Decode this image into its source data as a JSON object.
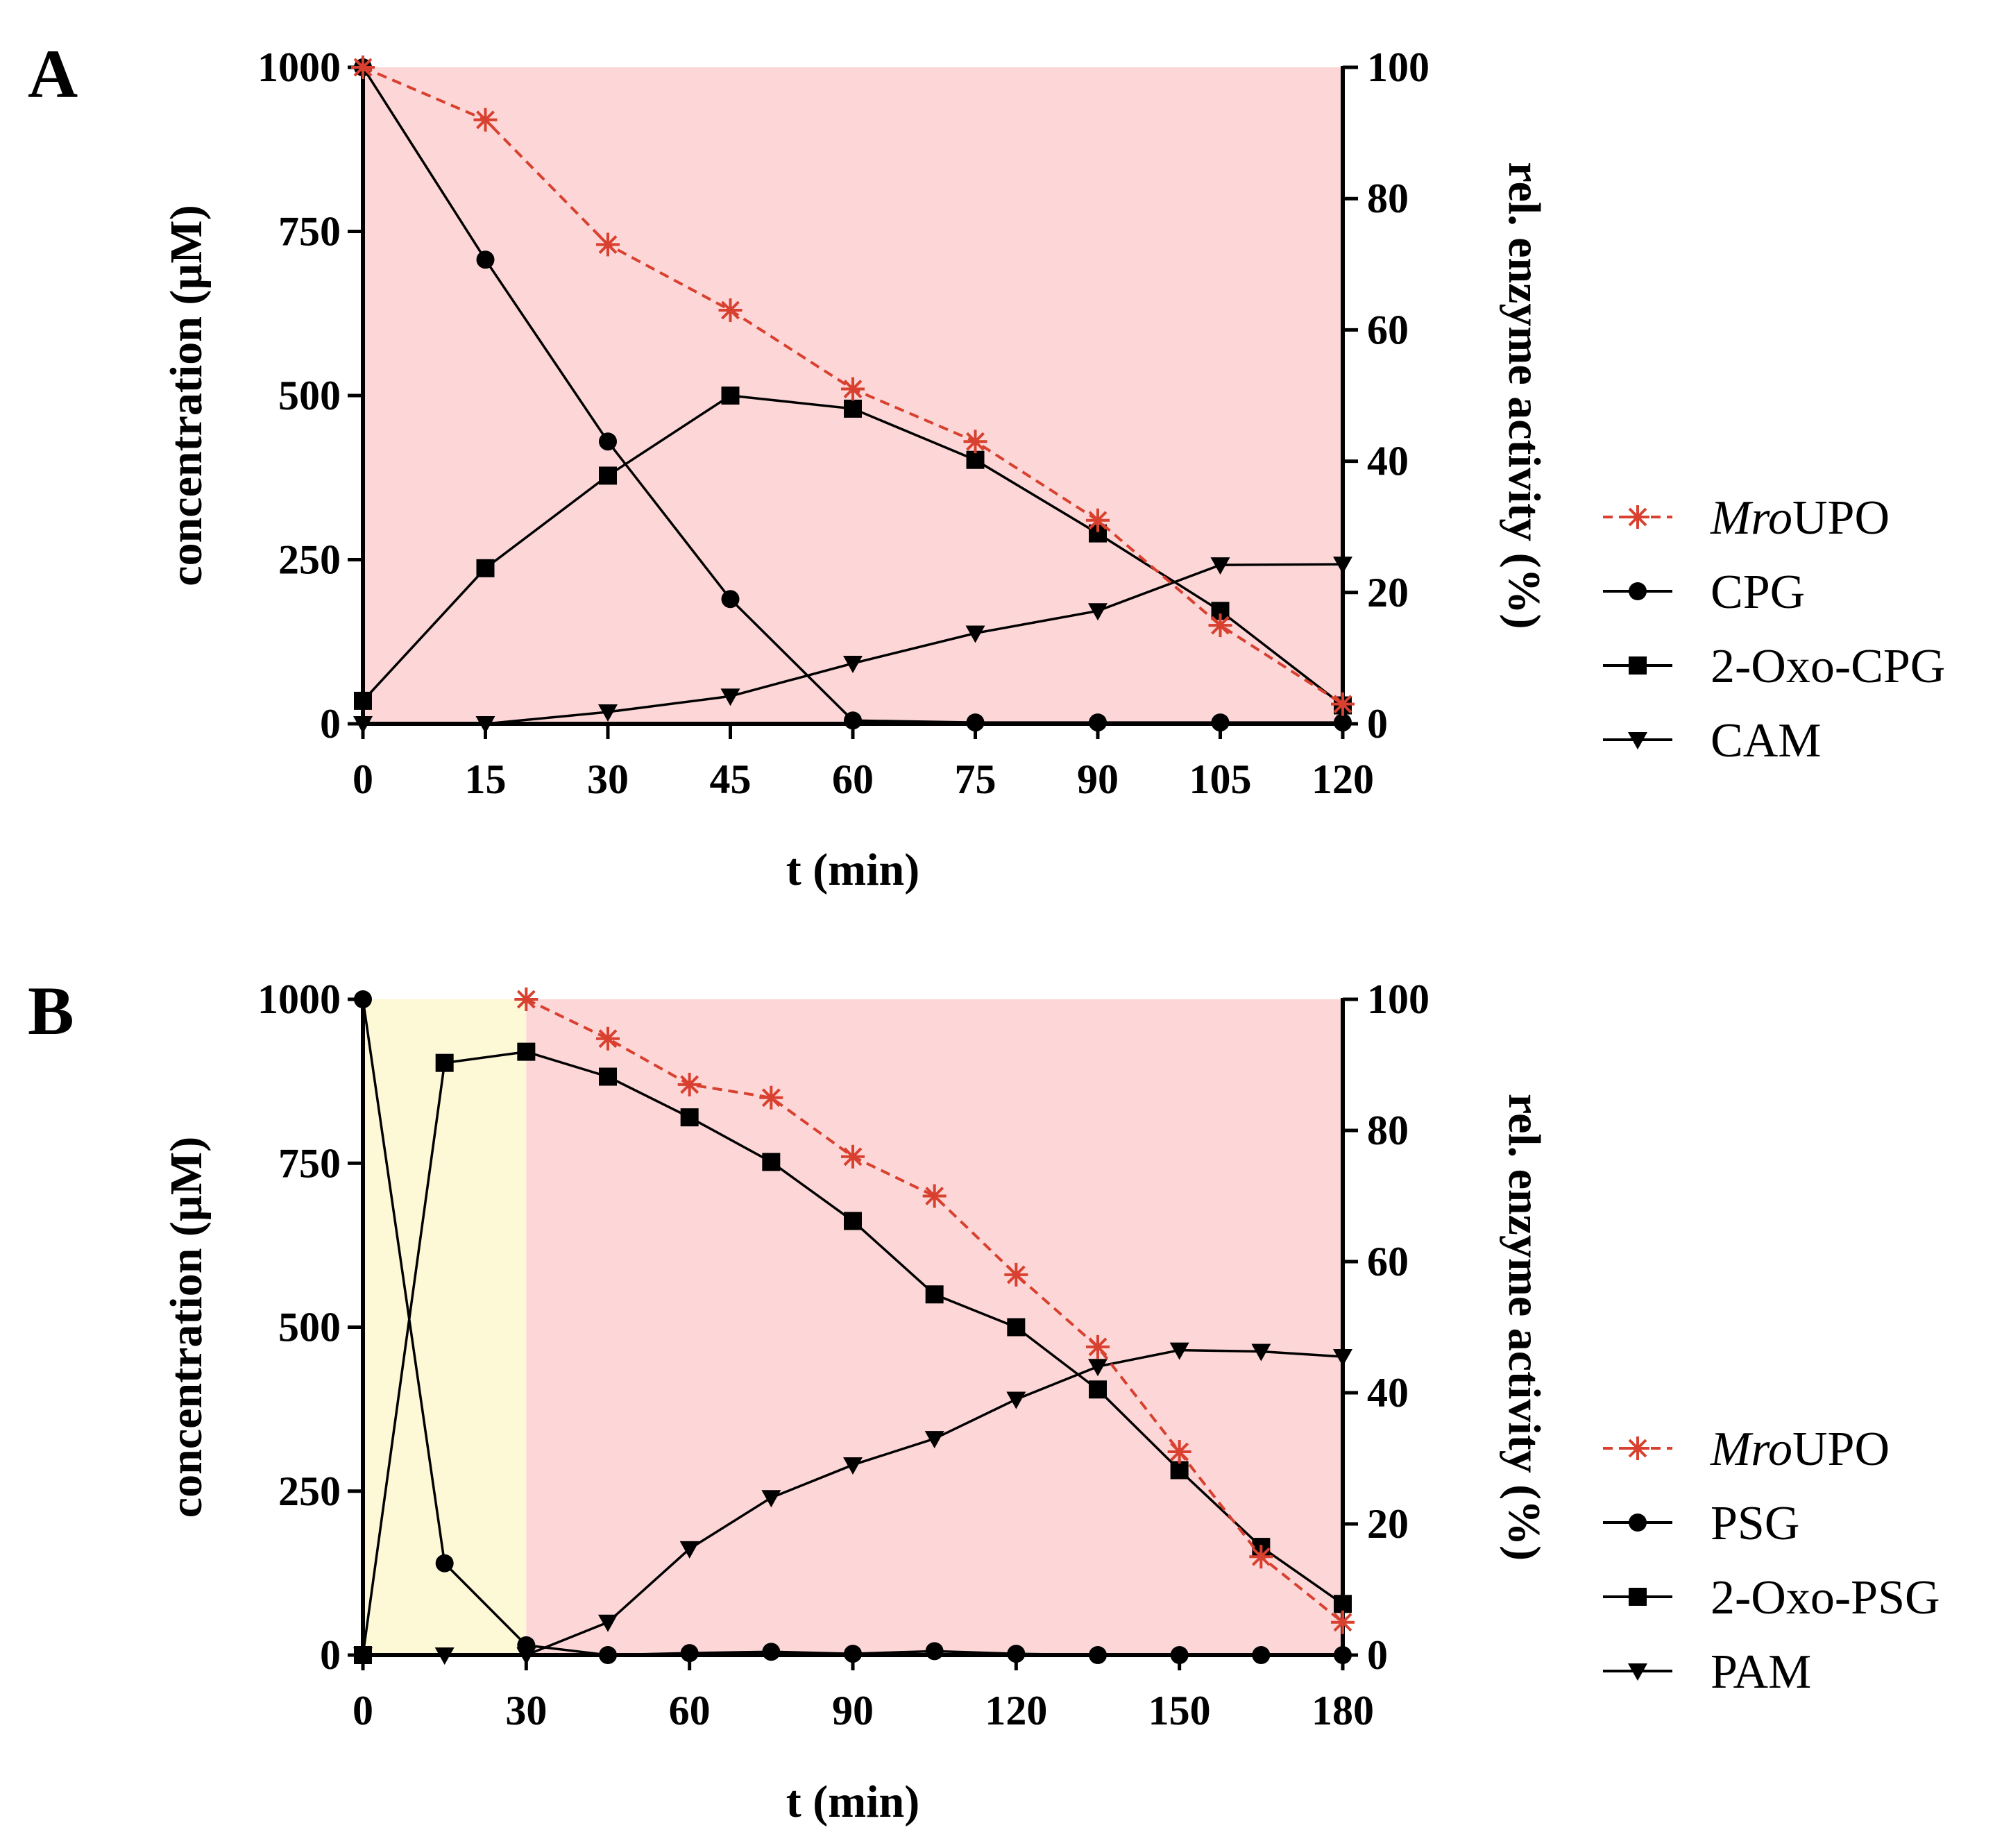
{
  "chart_data": [
    {
      "panel": "A",
      "type": "line",
      "xlabel": "t (min)",
      "ylabel": "concentration (µM)",
      "y2label": "rel. enzyme activity (%)",
      "xlim": [
        0,
        120
      ],
      "ylim": [
        0,
        1000
      ],
      "y2lim": [
        0,
        100
      ],
      "xticks": [
        0,
        15,
        30,
        45,
        60,
        75,
        90,
        105,
        120
      ],
      "yticks": [
        0,
        250,
        500,
        750,
        1000
      ],
      "y2ticks": [
        0,
        20,
        40,
        60,
        80,
        100
      ],
      "shading": [
        {
          "from": 0,
          "to": 120,
          "color": "#fdd7d7"
        }
      ],
      "series": [
        {
          "name": "MroUPO",
          "name_italic": "Mro",
          "name_rest": "UPO",
          "axis": "right",
          "marker": "asterisk",
          "color": "#d8402f",
          "dashed": true,
          "x": [
            0,
            15,
            30,
            45,
            60,
            75,
            90,
            105,
            120
          ],
          "values": [
            100,
            92,
            73,
            63,
            51,
            43,
            31,
            15,
            3
          ]
        },
        {
          "name": "CPG",
          "axis": "left",
          "marker": "circle",
          "color": "#000000",
          "dashed": false,
          "x": [
            0,
            15,
            30,
            45,
            60,
            75,
            90,
            105,
            120
          ],
          "values": [
            1000,
            707,
            430,
            190,
            5,
            2,
            2,
            2,
            2
          ]
        },
        {
          "name": "2-Oxo-CPG",
          "axis": "left",
          "marker": "square",
          "color": "#000000",
          "dashed": false,
          "x": [
            0,
            15,
            30,
            45,
            60,
            75,
            90,
            105,
            120
          ],
          "values": [
            35,
            237,
            378,
            500,
            480,
            402,
            290,
            172,
            28
          ]
        },
        {
          "name": "CAM",
          "axis": "left",
          "marker": "triangle-down",
          "color": "#000000",
          "dashed": false,
          "x": [
            0,
            15,
            30,
            45,
            60,
            75,
            90,
            105,
            120
          ],
          "values": [
            0,
            0,
            18,
            42,
            92,
            138,
            172,
            242,
            243
          ]
        }
      ]
    },
    {
      "panel": "B",
      "type": "line",
      "xlabel": "t (min)",
      "ylabel": "concentration (µM)",
      "y2label": "rel. enzyme activity (%)",
      "xlim": [
        0,
        180
      ],
      "ylim": [
        0,
        1000
      ],
      "y2lim": [
        0,
        100
      ],
      "xticks": [
        0,
        30,
        60,
        90,
        120,
        150,
        180
      ],
      "yticks": [
        0,
        250,
        500,
        750,
        1000
      ],
      "y2ticks": [
        0,
        20,
        40,
        60,
        80,
        100
      ],
      "shading": [
        {
          "from": 0,
          "to": 30,
          "color": "#fdf8d6"
        },
        {
          "from": 30,
          "to": 180,
          "color": "#fdd7d7"
        }
      ],
      "series": [
        {
          "name": "MroUPO",
          "name_italic": "Mro",
          "name_rest": "UPO",
          "axis": "right",
          "marker": "asterisk",
          "color": "#d8402f",
          "dashed": true,
          "x": [
            30,
            45,
            60,
            75,
            90,
            105,
            120,
            135,
            150,
            165,
            180
          ],
          "values": [
            100,
            94,
            87,
            85,
            76,
            70,
            58,
            47,
            31,
            15,
            5
          ]
        },
        {
          "name": "PSG",
          "axis": "left",
          "marker": "circle",
          "color": "#000000",
          "dashed": false,
          "x": [
            0,
            15,
            30,
            45,
            60,
            75,
            90,
            105,
            120,
            135,
            150,
            165,
            180
          ],
          "values": [
            1000,
            140,
            15,
            0,
            3,
            5,
            2,
            6,
            2,
            0,
            0,
            0,
            0
          ]
        },
        {
          "name": "2-Oxo-PSG",
          "axis": "left",
          "marker": "square",
          "color": "#000000",
          "dashed": false,
          "x": [
            0,
            15,
            30,
            45,
            60,
            75,
            90,
            105,
            120,
            135,
            150,
            165,
            180
          ],
          "values": [
            0,
            903,
            920,
            882,
            820,
            752,
            662,
            550,
            500,
            405,
            282,
            165,
            78
          ]
        },
        {
          "name": "PAM",
          "axis": "left",
          "marker": "triangle-down",
          "color": "#000000",
          "dashed": false,
          "x": [
            0,
            15,
            30,
            45,
            60,
            75,
            90,
            105,
            120,
            135,
            150,
            165,
            180
          ],
          "values": [
            0,
            0,
            0,
            50,
            162,
            240,
            290,
            330,
            390,
            440,
            465,
            463,
            455
          ]
        }
      ]
    }
  ]
}
